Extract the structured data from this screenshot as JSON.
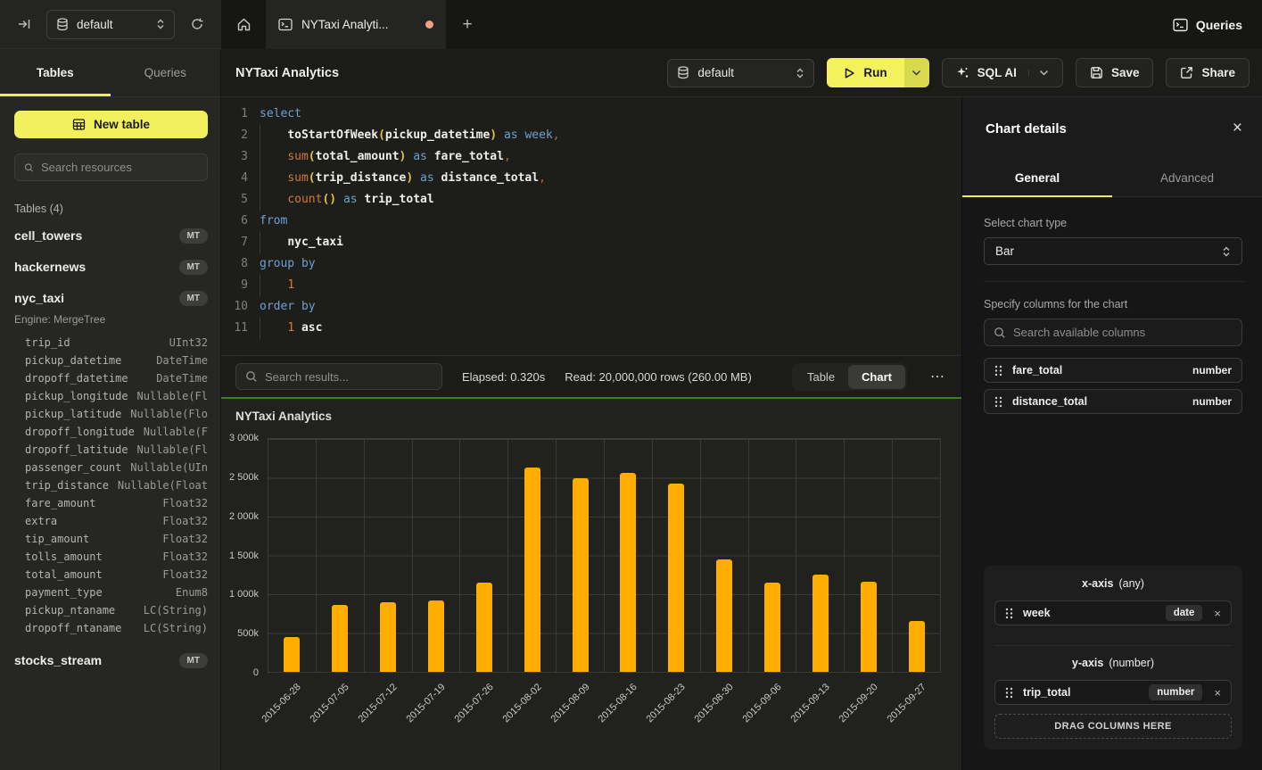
{
  "colors": {
    "accent_yellow": "#f3f060",
    "bar_color": "#ffae00",
    "success_green": "#3c7d22",
    "unsaved_dot": "#efa184"
  },
  "topbar": {
    "db_selector_value": "default",
    "tab_title": "NYTaxi Analyti...",
    "new_tab_label": "+",
    "queries_label": "Queries"
  },
  "sidebar": {
    "tab_tables": "Tables",
    "tab_queries": "Queries",
    "new_table_label": "New table",
    "search_placeholder": "Search resources",
    "section_header": "Tables (4)",
    "tables": [
      {
        "name": "cell_towers",
        "badge": "MT"
      },
      {
        "name": "hackernews",
        "badge": "MT"
      },
      {
        "name": "nyc_taxi",
        "badge": "MT",
        "engine": "Engine: MergeTree",
        "columns": [
          {
            "name": "trip_id",
            "type": "UInt32"
          },
          {
            "name": "pickup_datetime",
            "type": "DateTime"
          },
          {
            "name": "dropoff_datetime",
            "type": "DateTime"
          },
          {
            "name": "pickup_longitude",
            "type": "Nullable(Fl"
          },
          {
            "name": "pickup_latitude",
            "type": "Nullable(Flo"
          },
          {
            "name": "dropoff_longitude",
            "type": "Nullable(F"
          },
          {
            "name": "dropoff_latitude",
            "type": "Nullable(Fl"
          },
          {
            "name": "passenger_count",
            "type": "Nullable(UIn"
          },
          {
            "name": "trip_distance",
            "type": "Nullable(Float"
          },
          {
            "name": "fare_amount",
            "type": "Float32"
          },
          {
            "name": "extra",
            "type": "Float32"
          },
          {
            "name": "tip_amount",
            "type": "Float32"
          },
          {
            "name": "tolls_amount",
            "type": "Float32"
          },
          {
            "name": "total_amount",
            "type": "Float32"
          },
          {
            "name": "payment_type",
            "type": "Enum8"
          },
          {
            "name": "pickup_ntaname",
            "type": "LC(String)"
          },
          {
            "name": "dropoff_ntaname",
            "type": "LC(String)"
          }
        ]
      },
      {
        "name": "stocks_stream",
        "badge": "MT"
      }
    ]
  },
  "toolbar": {
    "title": "NYTaxi Analytics",
    "db_selector_value": "default",
    "run_label": "Run",
    "sql_ai_label": "SQL AI",
    "save_label": "Save",
    "share_label": "Share"
  },
  "editor": {
    "lines": [
      {
        "n": "1",
        "s": [
          [
            "select",
            "kw"
          ]
        ]
      },
      {
        "n": "2",
        "s": [
          [
            "    ",
            ""
          ],
          [
            "toStartOfWeek",
            "fn"
          ],
          [
            "(",
            "par"
          ],
          [
            "pickup_datetime",
            "fn"
          ],
          [
            ")",
            "par"
          ],
          [
            " ",
            ""
          ],
          [
            "as",
            "kw"
          ],
          [
            " ",
            ""
          ],
          [
            "week",
            "kw"
          ],
          [
            ",",
            "cm"
          ]
        ]
      },
      {
        "n": "3",
        "s": [
          [
            "    ",
            ""
          ],
          [
            "sum",
            "agg"
          ],
          [
            "(",
            "par"
          ],
          [
            "total_amount",
            "fn"
          ],
          [
            ")",
            "par"
          ],
          [
            " ",
            ""
          ],
          [
            "as",
            "kw"
          ],
          [
            " ",
            ""
          ],
          [
            "fare_total",
            "fn"
          ],
          [
            ",",
            "cm"
          ]
        ]
      },
      {
        "n": "4",
        "s": [
          [
            "    ",
            ""
          ],
          [
            "sum",
            "agg"
          ],
          [
            "(",
            "par"
          ],
          [
            "trip_distance",
            "fn"
          ],
          [
            ")",
            "par"
          ],
          [
            " ",
            ""
          ],
          [
            "as",
            "kw"
          ],
          [
            " ",
            ""
          ],
          [
            "distance_total",
            "fn"
          ],
          [
            ",",
            "cm"
          ]
        ]
      },
      {
        "n": "5",
        "s": [
          [
            "    ",
            ""
          ],
          [
            "count",
            "agg"
          ],
          [
            "()",
            "par"
          ],
          [
            " ",
            ""
          ],
          [
            "as",
            "kw"
          ],
          [
            " ",
            ""
          ],
          [
            "trip_total",
            "fn"
          ]
        ]
      },
      {
        "n": "6",
        "s": [
          [
            "from",
            "kw"
          ]
        ]
      },
      {
        "n": "7",
        "s": [
          [
            "    ",
            ""
          ],
          [
            "nyc_taxi",
            "fn"
          ]
        ]
      },
      {
        "n": "8",
        "s": [
          [
            "group by",
            "kw"
          ]
        ]
      },
      {
        "n": "9",
        "s": [
          [
            "    ",
            ""
          ],
          [
            "1",
            "num"
          ]
        ]
      },
      {
        "n": "10",
        "s": [
          [
            "order by",
            "kw"
          ]
        ]
      },
      {
        "n": "11",
        "s": [
          [
            "    ",
            ""
          ],
          [
            "1",
            "num"
          ],
          [
            " ",
            ""
          ],
          [
            "asc",
            "fn"
          ]
        ]
      }
    ]
  },
  "results": {
    "search_placeholder": "Search results...",
    "elapsed": "Elapsed: 0.320s",
    "read": "Read: 20,000,000 rows (260.00 MB)",
    "table_toggle": "Table",
    "chart_toggle": "Chart",
    "more": "⋯"
  },
  "chart_data": {
    "type": "bar",
    "title": "NYTaxi Analytics",
    "series_name": "trip_total",
    "categories": [
      "2015-06-28",
      "2015-07-05",
      "2015-07-12",
      "2015-07-19",
      "2015-07-26",
      "2015-08-02",
      "2015-08-09",
      "2015-08-16",
      "2015-08-23",
      "2015-08-30",
      "2015-09-06",
      "2015-09-13",
      "2015-09-20",
      "2015-09-27"
    ],
    "values_thousands": [
      450,
      860,
      900,
      920,
      1150,
      2630,
      2500,
      2560,
      2430,
      1450,
      1150,
      1250,
      1160,
      650
    ],
    "xlabel": "week",
    "ylabel": "trip_total",
    "ylim_thousands": [
      0,
      3000
    ],
    "y_ticks": [
      "3 000k",
      "2 500k",
      "2 000k",
      "1 500k",
      "1 000k",
      "500k",
      "0"
    ],
    "grid": true,
    "legend": false,
    "bar_color": "#ffae00"
  },
  "details_panel": {
    "title": "Chart details",
    "close_label": "×",
    "tab_general": "General",
    "tab_advanced": "Advanced",
    "chart_type_label": "Select chart type",
    "chart_type_value": "Bar",
    "columns_label": "Specify columns for the chart",
    "search_placeholder": "Search available columns",
    "available_columns": [
      {
        "name": "fare_total",
        "type": "number"
      },
      {
        "name": "distance_total",
        "type": "number"
      }
    ],
    "x_axis": {
      "title": "x-axis",
      "constraint": "(any)",
      "column": {
        "name": "week",
        "type": "date"
      },
      "remove_label": "×"
    },
    "y_axis": {
      "title": "y-axis",
      "constraint": "(number)",
      "column": {
        "name": "trip_total",
        "type": "number"
      },
      "remove_label": "×"
    },
    "drop_zone_label": "DRAG COLUMNS HERE"
  }
}
